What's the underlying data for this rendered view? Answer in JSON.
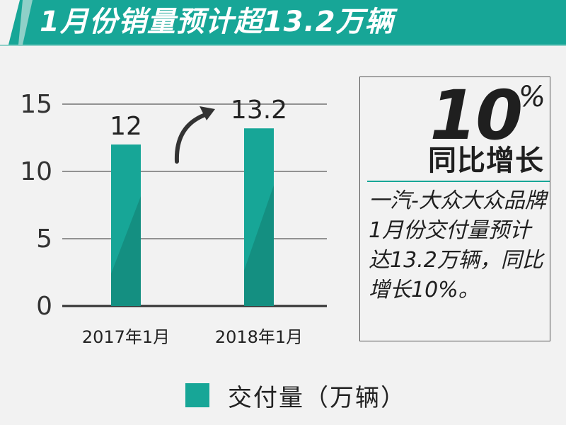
{
  "header": {
    "title": "1月份销量预计超13.2万辆"
  },
  "chart_data": {
    "type": "bar",
    "categories": [
      "2017年1月",
      "2018年1月"
    ],
    "values": [
      12,
      13.2
    ],
    "data_labels": [
      "12",
      "13.2"
    ],
    "yticks": [
      "0",
      "5",
      "10",
      "15"
    ],
    "ylim": [
      0,
      15
    ],
    "grid": true,
    "legend": {
      "label": "交付量（万辆）",
      "position": "bottom"
    },
    "colors": {
      "bar": "#17a697",
      "bar_shade": "#148f81",
      "grid": "#333333"
    }
  },
  "callout": {
    "number": "10",
    "percent": "%",
    "label": "同比增长",
    "description": "一汽-大众大众品牌1月份交付量预计达13.2万辆，同比增长10%。"
  },
  "colors": {
    "accent": "#17a697",
    "accent_light": "#8fd0c8",
    "background": "#f2f2f2"
  },
  "icons": {
    "trend_arrow": "curved-up-right-arrow-icon"
  }
}
